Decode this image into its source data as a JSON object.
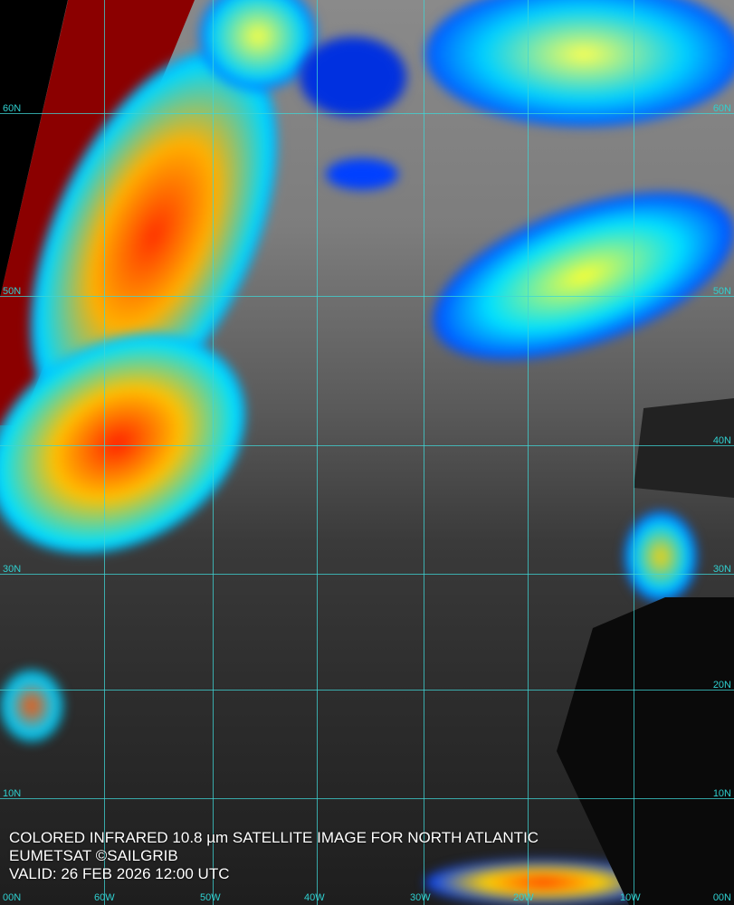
{
  "caption": {
    "title": "COLORED INFRARED 10.8 µm SATELLITE IMAGE FOR NORTH ATLANTIC",
    "source": "EUMETSAT ©SAILGRIB",
    "valid": "VALID:  26 FEB 2026 12:00 UTC"
  },
  "latitudes": [
    "60N",
    "50N",
    "40N",
    "30N",
    "20N",
    "10N",
    "00N"
  ],
  "longitudes": [
    "60W",
    "50W",
    "40W",
    "30W",
    "20W",
    "10W"
  ],
  "colors": {
    "grid": "#3fd6d6",
    "cold_cloud": "#ff0000",
    "mid_cloud": "#ffff00",
    "low_cloud": "#0033ff",
    "space": "#8b0000"
  }
}
